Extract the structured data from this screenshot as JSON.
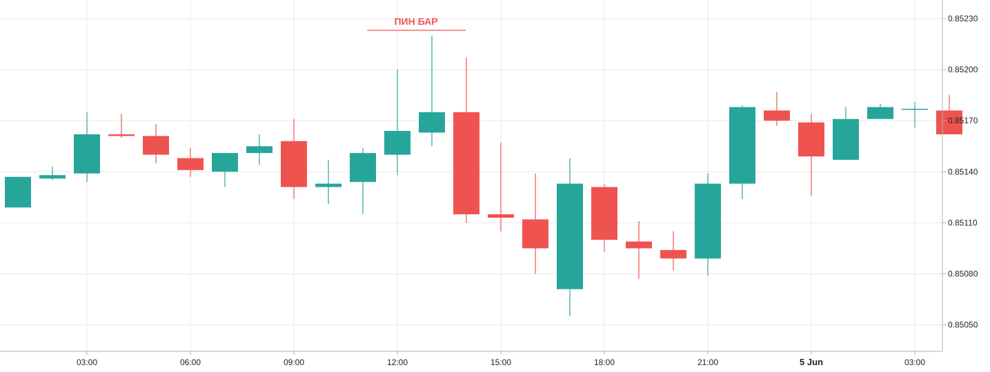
{
  "colors": {
    "up": "#26a69a",
    "down": "#ef5350",
    "grid": "#e8e8e8",
    "axis": "#b0b0b0",
    "annotation": "#ef5350"
  },
  "chart_data": {
    "type": "candlestick",
    "ylim": [
      0.8503,
      0.85245
    ],
    "y_ticks": [
      "0.85050",
      "0.85080",
      "0.85110",
      "0.85140",
      "0.85170",
      "0.85200",
      "0.85230"
    ],
    "x_ticks": [
      {
        "label": "03:00",
        "index": 2,
        "bold": false
      },
      {
        "label": "06:00",
        "index": 5,
        "bold": false
      },
      {
        "label": "09:00",
        "index": 8,
        "bold": false
      },
      {
        "label": "12:00",
        "index": 11,
        "bold": false
      },
      {
        "label": "15:00",
        "index": 14,
        "bold": false
      },
      {
        "label": "18:00",
        "index": 17,
        "bold": false
      },
      {
        "label": "21:00",
        "index": 20,
        "bold": false
      },
      {
        "label": "5 Jun",
        "index": 23,
        "bold": true
      },
      {
        "label": "03:00",
        "index": 26,
        "bold": false
      }
    ],
    "candles": [
      {
        "o": 0.85119,
        "h": 0.85137,
        "l": 0.85119,
        "c": 0.85137
      },
      {
        "o": 0.85136,
        "h": 0.85143,
        "l": 0.85135,
        "c": 0.85138
      },
      {
        "o": 0.85139,
        "h": 0.85175,
        "l": 0.85134,
        "c": 0.85162
      },
      {
        "o": 0.85162,
        "h": 0.85174,
        "l": 0.8516,
        "c": 0.85161
      },
      {
        "o": 0.85161,
        "h": 0.85168,
        "l": 0.85145,
        "c": 0.8515
      },
      {
        "o": 0.85148,
        "h": 0.85154,
        "l": 0.85137,
        "c": 0.85141
      },
      {
        "o": 0.8514,
        "h": 0.85151,
        "l": 0.85131,
        "c": 0.85151
      },
      {
        "o": 0.85151,
        "h": 0.85162,
        "l": 0.85144,
        "c": 0.85155
      },
      {
        "o": 0.85158,
        "h": 0.85171,
        "l": 0.85124,
        "c": 0.85131
      },
      {
        "o": 0.85131,
        "h": 0.85147,
        "l": 0.85121,
        "c": 0.85133
      },
      {
        "o": 0.85134,
        "h": 0.85154,
        "l": 0.85115,
        "c": 0.85151
      },
      {
        "o": 0.8515,
        "h": 0.852,
        "l": 0.85138,
        "c": 0.85164
      },
      {
        "o": 0.85163,
        "h": 0.8522,
        "l": 0.85155,
        "c": 0.85175
      },
      {
        "o": 0.85175,
        "h": 0.85207,
        "l": 0.8511,
        "c": 0.85115
      },
      {
        "o": 0.85115,
        "h": 0.85157,
        "l": 0.85105,
        "c": 0.85113
      },
      {
        "o": 0.85112,
        "h": 0.85139,
        "l": 0.8508,
        "c": 0.85095
      },
      {
        "o": 0.85071,
        "h": 0.85148,
        "l": 0.85055,
        "c": 0.85133
      },
      {
        "o": 0.85131,
        "h": 0.85133,
        "l": 0.85093,
        "c": 0.851
      },
      {
        "o": 0.85099,
        "h": 0.85111,
        "l": 0.85077,
        "c": 0.85095
      },
      {
        "o": 0.85094,
        "h": 0.85105,
        "l": 0.85082,
        "c": 0.85089
      },
      {
        "o": 0.85089,
        "h": 0.85139,
        "l": 0.85079,
        "c": 0.85133
      },
      {
        "o": 0.85133,
        "h": 0.85179,
        "l": 0.85124,
        "c": 0.85178
      },
      {
        "o": 0.85176,
        "h": 0.85187,
        "l": 0.85167,
        "c": 0.8517
      },
      {
        "o": 0.85169,
        "h": 0.85174,
        "l": 0.85126,
        "c": 0.85149
      },
      {
        "o": 0.85147,
        "h": 0.85178,
        "l": 0.85147,
        "c": 0.85171
      },
      {
        "o": 0.85171,
        "h": 0.8518,
        "l": 0.85171,
        "c": 0.85178
      },
      {
        "o": 0.85177,
        "h": 0.85181,
        "l": 0.85166,
        "c": 0.85177
      },
      {
        "o": 0.85176,
        "h": 0.85185,
        "l": 0.85162,
        "c": 0.85162
      }
    ],
    "annotation": {
      "text": "ПИН БАР",
      "candle_index": 12
    }
  }
}
